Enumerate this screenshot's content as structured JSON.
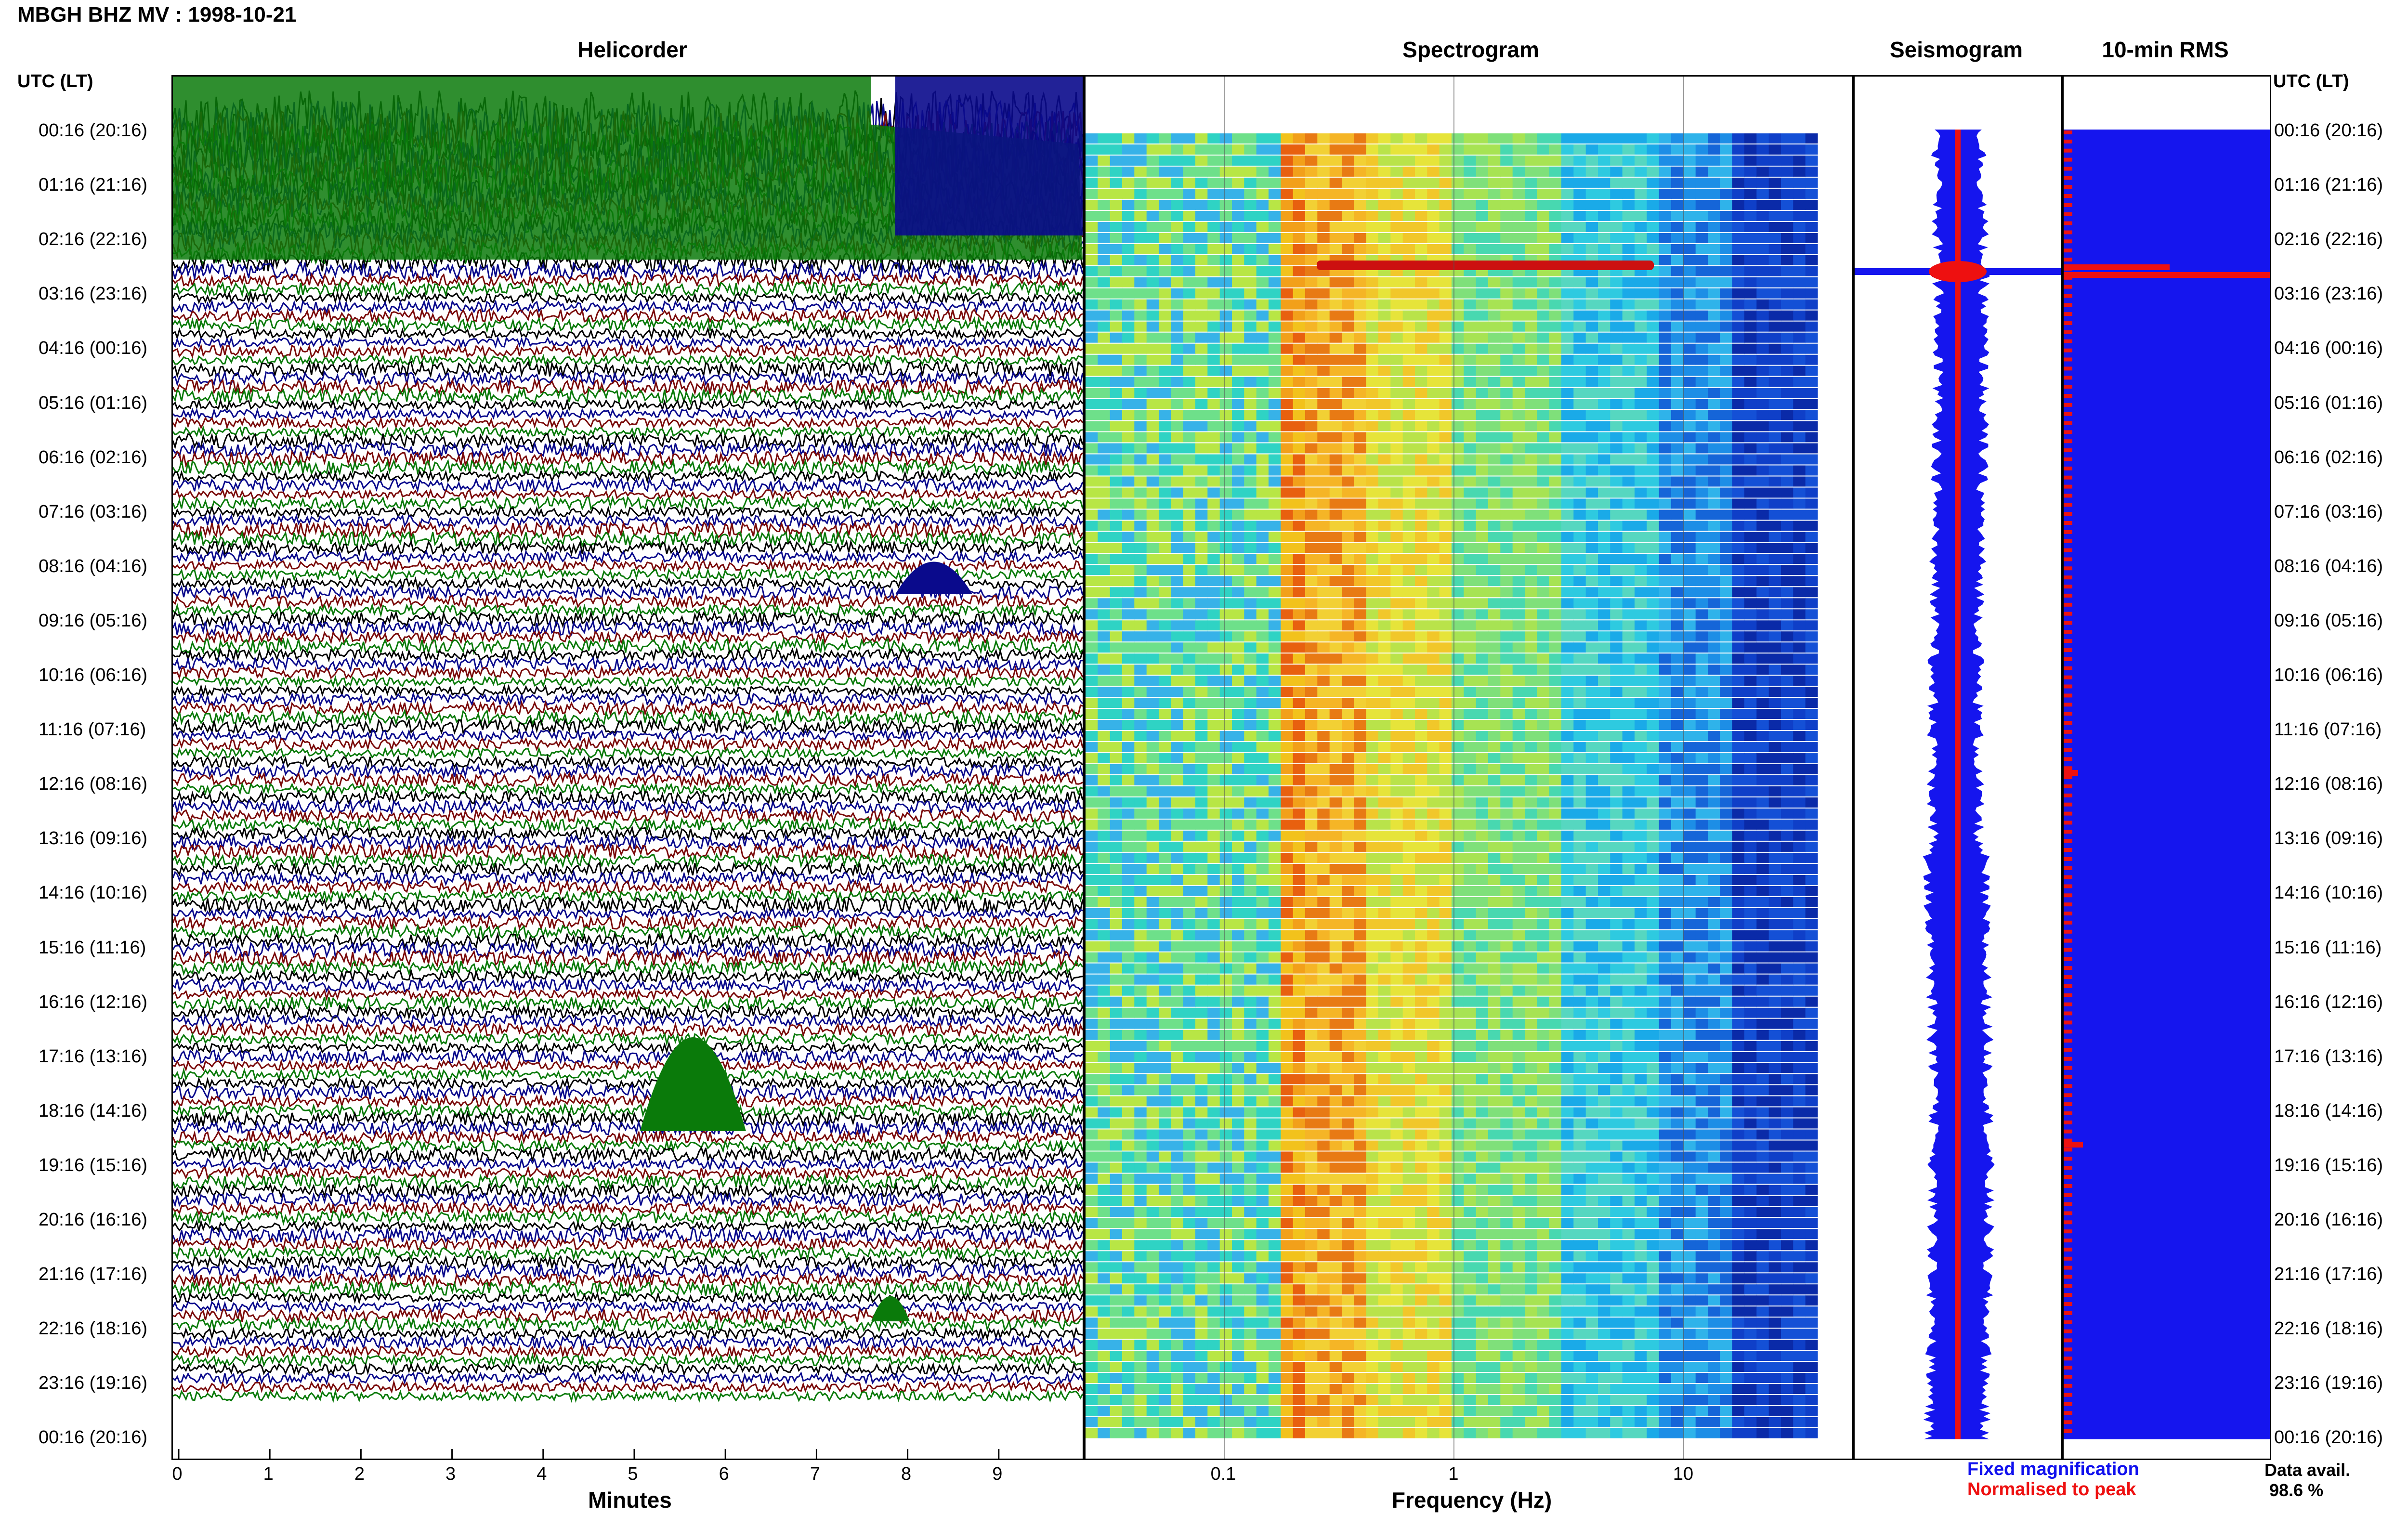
{
  "header": {
    "title": "MBGH BHZ MV : 1998-10-21"
  },
  "panels": {
    "helicorder": "Helicorder",
    "spectrogram": "Spectrogram",
    "seismogram": "Seismogram",
    "rms": "10-min RMS"
  },
  "time_axis": {
    "head_left": "UTC (LT)",
    "head_right": "UTC (LT)",
    "labels": [
      "00:16 (20:16)",
      "01:16 (21:16)",
      "02:16 (22:16)",
      "03:16 (23:16)",
      "04:16 (00:16)",
      "05:16 (01:16)",
      "06:16 (02:16)",
      "07:16 (03:16)",
      "08:16 (04:16)",
      "09:16 (05:16)",
      "10:16 (06:16)",
      "11:16 (07:16)",
      "12:16 (08:16)",
      "13:16 (09:16)",
      "14:16 (10:16)",
      "15:16 (11:16)",
      "16:16 (12:16)",
      "17:16 (13:16)",
      "18:16 (14:16)",
      "19:16 (15:16)",
      "20:16 (16:16)",
      "21:16 (17:16)",
      "22:16 (18:16)",
      "23:16 (19:16)",
      "00:16 (20:16)"
    ]
  },
  "helicorder_axis": {
    "ticks": [
      "0",
      "1",
      "2",
      "3",
      "4",
      "5",
      "6",
      "7",
      "8",
      "9"
    ],
    "xlabel": "Minutes",
    "trace_colors": [
      "#000000",
      "#0a0a8c",
      "#7a0a0a",
      "#0a7a0a"
    ]
  },
  "spectrogram_axis": {
    "ticks": [
      "0.1",
      "1",
      "10"
    ],
    "xlabel": "Frequency (Hz)"
  },
  "legend": {
    "fixed": "Fixed magnification",
    "normalised": "Normalised to peak",
    "fixed_color": "#1010ee",
    "normalised_color": "#ee1010"
  },
  "data_availability": {
    "label": "Data avail.",
    "value": "98.6 %"
  }
}
